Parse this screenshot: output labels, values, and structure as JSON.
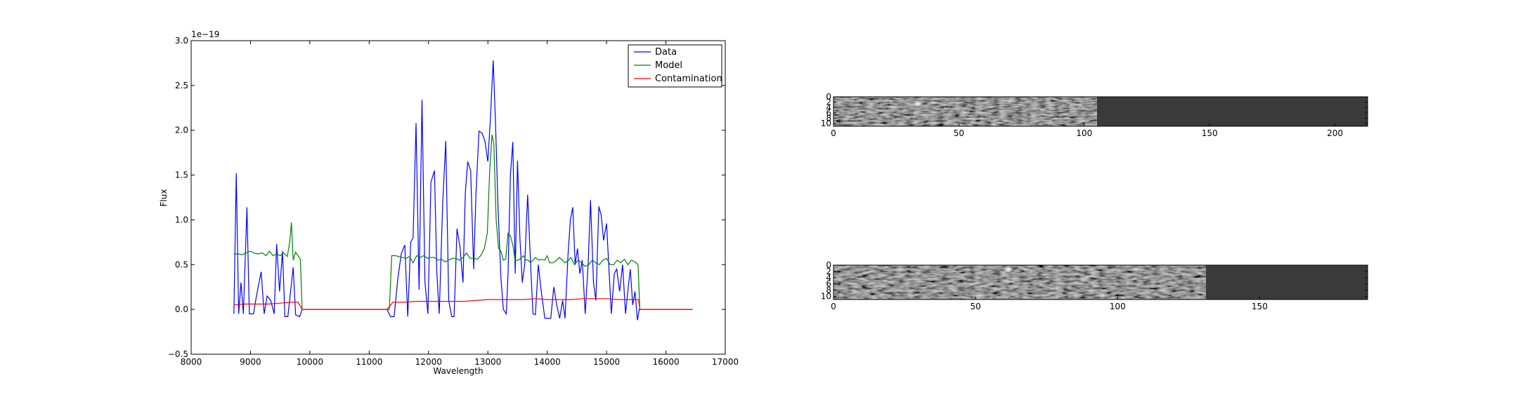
{
  "chart_data": [
    {
      "type": "line",
      "title": "",
      "xlabel": "Wavelength",
      "ylabel": "Flux",
      "y_offset_label": "1e−19",
      "xlim": [
        8000,
        17000
      ],
      "ylim": [
        -0.5,
        3.0
      ],
      "x_ticks": [
        8000,
        9000,
        10000,
        11000,
        12000,
        13000,
        14000,
        15000,
        16000,
        17000
      ],
      "y_ticks": [
        -0.5,
        0.0,
        0.5,
        1.0,
        1.5,
        2.0,
        2.5,
        3.0
      ],
      "y_tick_labels": [
        "−0.5",
        "0.0",
        "0.5",
        "1.0",
        "1.5",
        "2.0",
        "2.5",
        "3.0"
      ],
      "legend_position": "top-right",
      "series": [
        {
          "name": "Data",
          "color": "#0000ff",
          "points": [
            [
              8720,
              -0.05
            ],
            [
              8760,
              1.52
            ],
            [
              8800,
              -0.05
            ],
            [
              8840,
              0.3
            ],
            [
              8880,
              -0.05
            ],
            [
              8940,
              1.14
            ],
            [
              8980,
              -0.05
            ],
            [
              9050,
              -0.05
            ],
            [
              9100,
              0.15
            ],
            [
              9180,
              0.42
            ],
            [
              9230,
              -0.05
            ],
            [
              9280,
              0.15
            ],
            [
              9340,
              0.1
            ],
            [
              9400,
              -0.05
            ],
            [
              9440,
              0.73
            ],
            [
              9490,
              0.2
            ],
            [
              9540,
              0.65
            ],
            [
              9580,
              -0.08
            ],
            [
              9630,
              -0.08
            ],
            [
              9720,
              0.47
            ],
            [
              9760,
              -0.06
            ],
            [
              9830,
              -0.08
            ],
            [
              9870,
              0.0
            ],
            [
              11300,
              0.0
            ],
            [
              11360,
              -0.08
            ],
            [
              11420,
              -0.08
            ],
            [
              11480,
              0.33
            ],
            [
              11540,
              0.62
            ],
            [
              11600,
              0.72
            ],
            [
              11650,
              -0.08
            ],
            [
              11700,
              0.75
            ],
            [
              11740,
              0.8
            ],
            [
              11790,
              2.08
            ],
            [
              11840,
              0.22
            ],
            [
              11890,
              2.34
            ],
            [
              11940,
              0.3
            ],
            [
              11990,
              -0.05
            ],
            [
              12040,
              1.42
            ],
            [
              12100,
              1.55
            ],
            [
              12140,
              0.4
            ],
            [
              12180,
              -0.05
            ],
            [
              12240,
              1.2
            ],
            [
              12290,
              1.88
            ],
            [
              12340,
              0.1
            ],
            [
              12390,
              -0.08
            ],
            [
              12430,
              -0.08
            ],
            [
              12480,
              0.9
            ],
            [
              12530,
              0.7
            ],
            [
              12580,
              0.3
            ],
            [
              12620,
              1.3
            ],
            [
              12660,
              1.65
            ],
            [
              12710,
              1.55
            ],
            [
              12760,
              0.45
            ],
            [
              12800,
              1.3
            ],
            [
              12850,
              1.99
            ],
            [
              12900,
              1.97
            ],
            [
              12950,
              1.88
            ],
            [
              13000,
              1.65
            ],
            [
              13040,
              2.1
            ],
            [
              13090,
              2.78
            ],
            [
              13130,
              2.05
            ],
            [
              13170,
              1.15
            ],
            [
              13220,
              0.35
            ],
            [
              13260,
              0.0
            ],
            [
              13310,
              -0.05
            ],
            [
              13340,
              0.4
            ],
            [
              13380,
              1.5
            ],
            [
              13420,
              1.87
            ],
            [
              13460,
              0.4
            ],
            [
              13500,
              1.66
            ],
            [
              13540,
              0.8
            ],
            [
              13580,
              0.3
            ],
            [
              13620,
              0.5
            ],
            [
              13670,
              1.28
            ],
            [
              13720,
              0.5
            ],
            [
              13760,
              -0.05
            ],
            [
              13800,
              -0.06
            ],
            [
              13850,
              0.5
            ],
            [
              13900,
              0.2
            ],
            [
              13960,
              -0.1
            ],
            [
              14010,
              -0.1
            ],
            [
              14060,
              -0.1
            ],
            [
              14110,
              0.25
            ],
            [
              14160,
              0.05
            ],
            [
              14210,
              -0.1
            ],
            [
              14260,
              0.1
            ],
            [
              14300,
              -0.1
            ],
            [
              14350,
              0.6
            ],
            [
              14390,
              1.0
            ],
            [
              14430,
              1.14
            ],
            [
              14470,
              0.5
            ],
            [
              14510,
              0.68
            ],
            [
              14550,
              0.4
            ],
            [
              14590,
              0.55
            ],
            [
              14640,
              -0.05
            ],
            [
              14690,
              0.5
            ],
            [
              14730,
              1.22
            ],
            [
              14780,
              0.3
            ],
            [
              14820,
              0.1
            ],
            [
              14870,
              1.15
            ],
            [
              14910,
              1.05
            ],
            [
              14950,
              0.77
            ],
            [
              15000,
              0.96
            ],
            [
              15040,
              0.45
            ],
            [
              15080,
              -0.05
            ],
            [
              15130,
              0.4
            ],
            [
              15170,
              0.45
            ],
            [
              15220,
              0.2
            ],
            [
              15270,
              0.5
            ],
            [
              15320,
              -0.05
            ],
            [
              15370,
              0.28
            ],
            [
              15400,
              0.45
            ],
            [
              15440,
              0.05
            ],
            [
              15480,
              0.2
            ],
            [
              15520,
              -0.12
            ],
            [
              15550,
              0.0
            ],
            [
              16450,
              0.0
            ]
          ]
        },
        {
          "name": "Model",
          "color": "#008000",
          "points": [
            [
              8720,
              0.62
            ],
            [
              8800,
              0.62
            ],
            [
              8860,
              0.61
            ],
            [
              8920,
              0.63
            ],
            [
              9000,
              0.65
            ],
            [
              9060,
              0.63
            ],
            [
              9120,
              0.62
            ],
            [
              9200,
              0.63
            ],
            [
              9260,
              0.6
            ],
            [
              9320,
              0.65
            ],
            [
              9380,
              0.6
            ],
            [
              9440,
              0.62
            ],
            [
              9500,
              0.6
            ],
            [
              9560,
              0.63
            ],
            [
              9620,
              0.59
            ],
            [
              9660,
              0.75
            ],
            [
              9690,
              0.97
            ],
            [
              9720,
              0.55
            ],
            [
              9760,
              0.64
            ],
            [
              9800,
              0.6
            ],
            [
              9840,
              0.56
            ],
            [
              9870,
              0.0
            ],
            [
              11340,
              0.0
            ],
            [
              11380,
              0.6
            ],
            [
              11440,
              0.6
            ],
            [
              11500,
              0.59
            ],
            [
              11560,
              0.58
            ],
            [
              11620,
              0.57
            ],
            [
              11680,
              0.59
            ],
            [
              11740,
              0.52
            ],
            [
              11800,
              0.6
            ],
            [
              11860,
              0.58
            ],
            [
              11920,
              0.6
            ],
            [
              11980,
              0.57
            ],
            [
              12040,
              0.58
            ],
            [
              12100,
              0.58
            ],
            [
              12160,
              0.55
            ],
            [
              12220,
              0.56
            ],
            [
              12280,
              0.53
            ],
            [
              12340,
              0.55
            ],
            [
              12400,
              0.57
            ],
            [
              12460,
              0.57
            ],
            [
              12520,
              0.55
            ],
            [
              12580,
              0.58
            ],
            [
              12640,
              0.63
            ],
            [
              12700,
              0.57
            ],
            [
              12760,
              0.57
            ],
            [
              12820,
              0.56
            ],
            [
              12880,
              0.6
            ],
            [
              12940,
              0.68
            ],
            [
              12990,
              0.85
            ],
            [
              13030,
              1.55
            ],
            [
              13070,
              1.95
            ],
            [
              13100,
              1.85
            ],
            [
              13140,
              1.0
            ],
            [
              13180,
              0.68
            ],
            [
              13220,
              0.65
            ],
            [
              13260,
              0.55
            ],
            [
              13300,
              0.56
            ],
            [
              13340,
              0.85
            ],
            [
              13380,
              0.82
            ],
            [
              13420,
              0.72
            ],
            [
              13460,
              0.54
            ],
            [
              13500,
              0.55
            ],
            [
              13540,
              0.56
            ],
            [
              13600,
              0.6
            ],
            [
              13640,
              0.55
            ],
            [
              13680,
              0.55
            ],
            [
              13720,
              0.52
            ],
            [
              13760,
              0.55
            ],
            [
              13800,
              0.58
            ],
            [
              13860,
              0.55
            ],
            [
              13900,
              0.56
            ],
            [
              13960,
              0.55
            ],
            [
              14000,
              0.6
            ],
            [
              14040,
              0.52
            ],
            [
              14100,
              0.52
            ],
            [
              14160,
              0.55
            ],
            [
              14200,
              0.58
            ],
            [
              14240,
              0.56
            ],
            [
              14300,
              0.52
            ],
            [
              14360,
              0.55
            ],
            [
              14400,
              0.58
            ],
            [
              14460,
              0.5
            ],
            [
              14520,
              0.55
            ],
            [
              14580,
              0.52
            ],
            [
              14640,
              0.48
            ],
            [
              14700,
              0.5
            ],
            [
              14760,
              0.55
            ],
            [
              14820,
              0.52
            ],
            [
              14880,
              0.5
            ],
            [
              14940,
              0.55
            ],
            [
              15000,
              0.57
            ],
            [
              15060,
              0.5
            ],
            [
              15120,
              0.5
            ],
            [
              15180,
              0.55
            ],
            [
              15240,
              0.52
            ],
            [
              15300,
              0.56
            ],
            [
              15360,
              0.5
            ],
            [
              15420,
              0.55
            ],
            [
              15480,
              0.53
            ],
            [
              15530,
              0.5
            ],
            [
              15560,
              0.0
            ],
            [
              16450,
              0.0
            ]
          ]
        },
        {
          "name": "Contamination",
          "color": "#ff0000",
          "points": [
            [
              8720,
              0.05
            ],
            [
              8900,
              0.06
            ],
            [
              9100,
              0.06
            ],
            [
              9300,
              0.06
            ],
            [
              9500,
              0.07
            ],
            [
              9700,
              0.08
            ],
            [
              9800,
              0.08
            ],
            [
              9870,
              0.0
            ],
            [
              11300,
              0.0
            ],
            [
              11400,
              0.08
            ],
            [
              11600,
              0.08
            ],
            [
              11800,
              0.09
            ],
            [
              12000,
              0.09
            ],
            [
              12200,
              0.09
            ],
            [
              12400,
              0.09
            ],
            [
              12600,
              0.09
            ],
            [
              12800,
              0.1
            ],
            [
              13000,
              0.11
            ],
            [
              13200,
              0.11
            ],
            [
              13400,
              0.11
            ],
            [
              13600,
              0.11
            ],
            [
              13800,
              0.12
            ],
            [
              14000,
              0.11
            ],
            [
              14200,
              0.11
            ],
            [
              14400,
              0.11
            ],
            [
              14600,
              0.12
            ],
            [
              14800,
              0.12
            ],
            [
              15000,
              0.12
            ],
            [
              15200,
              0.11
            ],
            [
              15400,
              0.11
            ],
            [
              15540,
              0.11
            ],
            [
              15560,
              0.0
            ],
            [
              16450,
              0.0
            ]
          ]
        }
      ]
    },
    {
      "type": "heatmap",
      "title": "",
      "xlim": [
        0,
        213
      ],
      "ylim": [
        11,
        0
      ],
      "x_ticks": [
        0,
        50,
        100,
        150,
        200
      ],
      "y_ticks": [
        0,
        2,
        4,
        6,
        8,
        10
      ],
      "data_extent_x": 105,
      "background_value": "masked",
      "colormap": "gray"
    },
    {
      "type": "heatmap",
      "title": "",
      "xlim": [
        0,
        188
      ],
      "ylim": [
        11,
        0
      ],
      "x_ticks": [
        0,
        50,
        100,
        150
      ],
      "y_ticks": [
        0,
        2,
        4,
        6,
        8,
        10
      ],
      "data_extent_x": 131,
      "background_value": "masked",
      "colormap": "gray"
    }
  ]
}
